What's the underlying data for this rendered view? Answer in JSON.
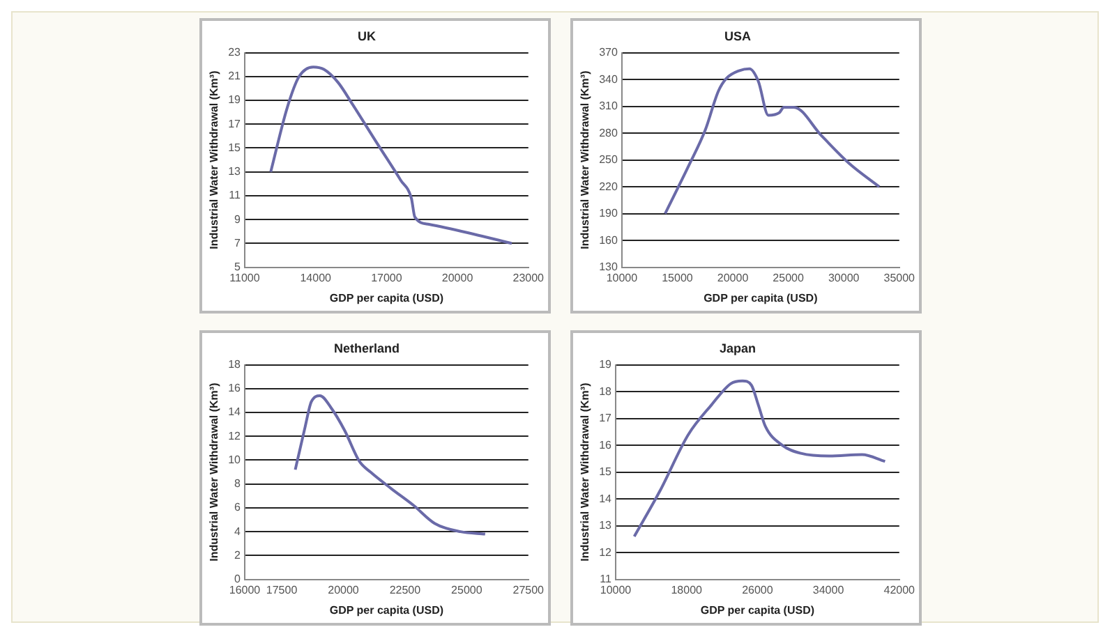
{
  "chart_data": [
    {
      "type": "line",
      "title": "UK",
      "xlabel": "GDP per capita (USD)",
      "ylabel": "Industrial Water Withdrawal (Km³)",
      "xlim": [
        11000,
        23000
      ],
      "xticks": [
        11000,
        14000,
        17000,
        20000,
        23000
      ],
      "ylim": [
        5,
        23
      ],
      "yticks": [
        5,
        7,
        9,
        11,
        13,
        15,
        17,
        19,
        21,
        23
      ],
      "grid": "y",
      "marker": "none",
      "series": [
        {
          "color": "#6a6aa8",
          "x": [
            12100,
            12800,
            13300,
            13900,
            14350,
            14950,
            15550,
            16600,
            17600,
            18050,
            18200,
            18800,
            20650,
            22300
          ],
          "values": [
            13,
            18.4,
            21,
            21.8,
            21.6,
            20.5,
            18.7,
            15.4,
            12.3,
            10.8,
            9.2,
            8.6,
            7.8,
            7
          ]
        }
      ]
    },
    {
      "type": "line",
      "title": "USA",
      "xlabel": "GDP per capita (USD)",
      "ylabel": "Industrial Water Withdrawal (Km³)",
      "xlim": [
        10000,
        35000
      ],
      "xticks": [
        10000,
        15000,
        20000,
        25000,
        30000,
        35000
      ],
      "ylim": [
        130,
        370
      ],
      "yticks": [
        130,
        160,
        190,
        220,
        250,
        280,
        310,
        340,
        370
      ],
      "grid": "y",
      "marker": "none",
      "series": [
        {
          "color": "#6a6aa8",
          "x": [
            13900,
            16000,
            17500,
            18700,
            19400,
            20600,
            21500,
            22300,
            23200,
            24200,
            24600,
            25500,
            28000,
            30500,
            33200
          ],
          "values": [
            190,
            243,
            283,
            327,
            341,
            350,
            352,
            338,
            300,
            303,
            309,
            309,
            277,
            246,
            220
          ]
        }
      ]
    },
    {
      "type": "line",
      "title": "Netherland",
      "xlabel": "GDP per capita (USD)",
      "ylabel": "Industrial Water Withdrawal (Km³)",
      "xlim": [
        16000,
        27500
      ],
      "xticks": [
        16000,
        17500,
        20000,
        22500,
        25000,
        27500
      ],
      "ylim": [
        0,
        18
      ],
      "yticks": [
        0,
        2,
        4,
        6,
        8,
        10,
        12,
        14,
        16,
        18
      ],
      "grid": "y",
      "marker": "none",
      "series": [
        {
          "color": "#6a6aa8",
          "x": [
            18050,
            18450,
            18700,
            19050,
            19500,
            20050,
            20650,
            21100,
            21950,
            22850,
            23700,
            24750,
            25750
          ],
          "values": [
            9.2,
            12.8,
            14.9,
            15.4,
            14.4,
            12.5,
            9.9,
            9,
            7.6,
            6.2,
            4.7,
            4,
            3.8
          ]
        }
      ]
    },
    {
      "type": "line",
      "title": "Japan",
      "xlabel": "GDP per capita (USD)",
      "ylabel": "Industrial Water Withdrawal (Km³)",
      "xlim": [
        10000,
        42000
      ],
      "xticks": [
        10000,
        18000,
        26000,
        34000,
        42000
      ],
      "ylim": [
        11,
        19
      ],
      "yticks": [
        11,
        12,
        13,
        14,
        15,
        16,
        17,
        18,
        19
      ],
      "grid": "y",
      "marker": "none",
      "series": [
        {
          "color": "#6a6aa8",
          "x": [
            12100,
            15000,
            18200,
            20800,
            23000,
            24300,
            25300,
            26100,
            26900,
            28800,
            30900,
            34100,
            37800,
            40400
          ],
          "values": [
            12.6,
            14.3,
            16.4,
            17.5,
            18.3,
            18.4,
            18.25,
            17.5,
            16.7,
            16,
            15.7,
            15.6,
            15.65,
            15.4
          ]
        }
      ]
    }
  ]
}
